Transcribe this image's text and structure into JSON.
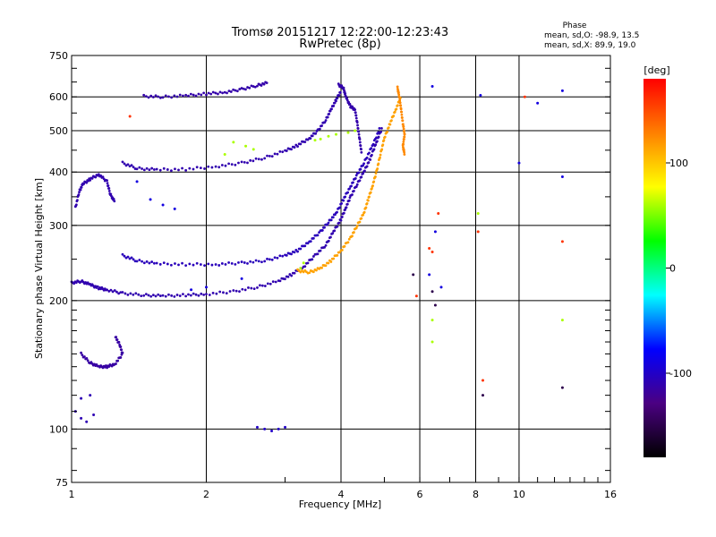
{
  "chart_data": {
    "type": "scatter",
    "title": "Tromsø 20151217 12:22:00-12:23:43",
    "subtitle": "RwPretec (8p)",
    "xlabel": "Frequency [MHz]",
    "ylabel": "Stationary phase Virtual Height [km]",
    "x_scale": "log",
    "y_scale": "log",
    "xlim": [
      1,
      16
    ],
    "ylim": [
      75,
      750
    ],
    "x_ticks": [
      1,
      2,
      4,
      6,
      8,
      10,
      16
    ],
    "y_ticks": [
      75,
      100,
      200,
      300,
      400,
      500,
      600,
      750
    ],
    "phase_info": {
      "heading": "Phase",
      "line_o": "mean, sd,O: -98.9, 13.5",
      "line_x": "mean, sd,X:  89.9, 19.0"
    },
    "colorbar": {
      "label": "[deg]",
      "ticks": [
        100,
        0,
        -100
      ],
      "min": -180,
      "max": 180,
      "colors": [
        "#000000",
        "#4b0082",
        "#0000ff",
        "#00ffff",
        "#00ff00",
        "#ffff00",
        "#ff8000",
        "#ff0000"
      ]
    },
    "series": [
      {
        "values": [
          [
            1.0,
            220
          ],
          [
            1.05,
            222
          ],
          [
            1.1,
            218
          ],
          [
            1.15,
            214
          ],
          [
            1.2,
            212
          ],
          [
            1.3,
            208
          ],
          [
            1.45,
            206
          ],
          [
            1.6,
            205
          ],
          [
            1.8,
            206
          ],
          [
            2.0,
            207
          ],
          [
            2.3,
            210
          ],
          [
            2.6,
            215
          ],
          [
            2.9,
            222
          ],
          [
            3.1,
            230
          ],
          [
            3.3,
            240
          ],
          [
            3.5,
            255
          ],
          [
            3.7,
            270
          ],
          [
            3.85,
            290
          ],
          [
            4.0,
            310
          ],
          [
            4.1,
            330
          ],
          [
            4.2,
            350
          ],
          [
            4.35,
            375
          ],
          [
            4.5,
            400
          ],
          [
            4.65,
            430
          ],
          [
            4.8,
            470
          ],
          [
            4.95,
            510
          ]
        ],
        "phase": -110
      },
      {
        "values": [
          [
            1.3,
            255
          ],
          [
            1.4,
            248
          ],
          [
            1.55,
            244
          ],
          [
            1.8,
            243
          ],
          [
            2.1,
            243
          ],
          [
            2.4,
            245
          ],
          [
            2.7,
            248
          ],
          [
            3.0,
            255
          ],
          [
            3.2,
            262
          ],
          [
            3.4,
            275
          ],
          [
            3.6,
            290
          ],
          [
            3.75,
            305
          ],
          [
            3.9,
            320
          ],
          [
            4.05,
            345
          ],
          [
            4.2,
            370
          ],
          [
            4.35,
            395
          ],
          [
            4.5,
            420
          ],
          [
            4.7,
            460
          ],
          [
            4.9,
            510
          ]
        ],
        "phase": -105
      },
      {
        "values": [
          [
            1.3,
            420
          ],
          [
            1.4,
            408
          ],
          [
            1.55,
            405
          ],
          [
            1.8,
            406
          ],
          [
            2.1,
            412
          ],
          [
            2.4,
            420
          ],
          [
            2.7,
            432
          ],
          [
            3.0,
            448
          ],
          [
            3.2,
            462
          ],
          [
            3.4,
            480
          ],
          [
            3.55,
            500
          ],
          [
            3.7,
            530
          ],
          [
            3.8,
            560
          ],
          [
            3.9,
            590
          ],
          [
            4.0,
            620
          ]
        ],
        "phase": -110
      },
      {
        "values": [
          [
            1.45,
            602
          ],
          [
            1.6,
            600
          ],
          [
            1.8,
            604
          ],
          [
            2.0,
            610
          ],
          [
            2.2,
            615
          ],
          [
            2.4,
            625
          ],
          [
            2.6,
            638
          ],
          [
            2.75,
            648
          ]
        ],
        "phase": -112
      },
      {
        "values": [
          [
            3.2,
            235
          ],
          [
            3.4,
            233
          ],
          [
            3.6,
            238
          ],
          [
            3.8,
            248
          ],
          [
            4.0,
            262
          ],
          [
            4.2,
            280
          ],
          [
            4.35,
            300
          ],
          [
            4.5,
            320
          ],
          [
            4.6,
            345
          ],
          [
            4.7,
            370
          ],
          [
            4.8,
            400
          ],
          [
            4.9,
            440
          ],
          [
            5.0,
            480
          ],
          [
            5.15,
            520
          ],
          [
            5.3,
            560
          ],
          [
            5.45,
            600
          ]
        ],
        "phase": 115
      },
      {
        "values": [
          [
            5.35,
            630
          ],
          [
            5.4,
            600
          ],
          [
            5.45,
            560
          ],
          [
            5.5,
            520
          ],
          [
            5.55,
            490
          ],
          [
            5.5,
            460
          ],
          [
            5.55,
            440
          ]
        ],
        "phase": 125
      },
      {
        "values": [
          [
            1.05,
            150
          ],
          [
            1.1,
            143
          ],
          [
            1.15,
            140
          ],
          [
            1.2,
            140
          ],
          [
            1.25,
            142
          ],
          [
            1.3,
            150
          ],
          [
            1.28,
            158
          ],
          [
            1.25,
            165
          ]
        ],
        "phase": -115
      },
      {
        "values": [
          [
            1.02,
            110
          ],
          [
            1.05,
            106
          ],
          [
            1.08,
            104
          ],
          [
            1.12,
            108
          ],
          [
            1.05,
            118
          ],
          [
            1.1,
            120
          ]
        ],
        "phase": -108
      },
      {
        "values": [
          [
            2.6,
            101
          ],
          [
            2.7,
            100
          ],
          [
            2.8,
            99
          ],
          [
            2.9,
            100
          ],
          [
            3.0,
            101
          ]
        ],
        "phase": -100
      },
      {
        "values": [
          [
            1.02,
            330
          ],
          [
            1.04,
            360
          ],
          [
            1.06,
            375
          ],
          [
            1.1,
            385
          ],
          [
            1.15,
            395
          ],
          [
            1.2,
            380
          ],
          [
            1.22,
            355
          ],
          [
            1.25,
            340
          ]
        ],
        "phase": -110
      },
      {
        "values": [
          [
            3.95,
            640
          ],
          [
            4.05,
            630
          ],
          [
            4.1,
            600
          ],
          [
            4.2,
            570
          ],
          [
            4.3,
            560
          ],
          [
            4.35,
            520
          ],
          [
            4.4,
            480
          ],
          [
            4.45,
            440
          ]
        ],
        "phase": -112
      },
      {
        "values": [
          [
            1.5,
            345
          ],
          [
            1.6,
            335
          ],
          [
            1.7,
            328
          ],
          [
            1.4,
            380
          ],
          [
            2.4,
            225
          ],
          [
            2.0,
            215
          ],
          [
            1.85,
            212
          ],
          [
            6.4,
            635
          ],
          [
            6.3,
            230
          ],
          [
            8.2,
            605
          ],
          [
            10,
            420
          ],
          [
            12.5,
            620
          ],
          [
            11,
            580
          ],
          [
            12.5,
            390
          ],
          [
            6.5,
            290
          ],
          [
            6.7,
            215
          ]
        ],
        "phase": -90
      },
      {
        "values": [
          [
            3.5,
            475
          ],
          [
            3.6,
            478
          ],
          [
            3.75,
            485
          ],
          [
            3.9,
            490
          ],
          [
            4.15,
            495
          ],
          [
            4.3,
            500
          ],
          [
            3.3,
            245
          ],
          [
            3.25,
            238
          ],
          [
            6.4,
            180
          ],
          [
            6.4,
            160
          ],
          [
            12.5,
            180
          ],
          [
            8.1,
            320
          ],
          [
            2.2,
            440
          ],
          [
            2.3,
            470
          ],
          [
            2.45,
            460
          ],
          [
            2.55,
            452
          ]
        ],
        "phase": 60
      },
      {
        "values": [
          [
            6.3,
            265
          ],
          [
            6.4,
            260
          ],
          [
            8.1,
            290
          ],
          [
            12.5,
            275
          ],
          [
            6.6,
            320
          ],
          [
            5.9,
            205
          ],
          [
            1.35,
            540
          ],
          [
            10.3,
            600
          ],
          [
            8.3,
            130
          ]
        ],
        "phase": 160
      },
      {
        "values": [
          [
            6.4,
            210
          ],
          [
            6.5,
            195
          ],
          [
            12.5,
            125
          ],
          [
            8.3,
            120
          ],
          [
            5.8,
            230
          ]
        ],
        "phase": -150
      }
    ]
  }
}
